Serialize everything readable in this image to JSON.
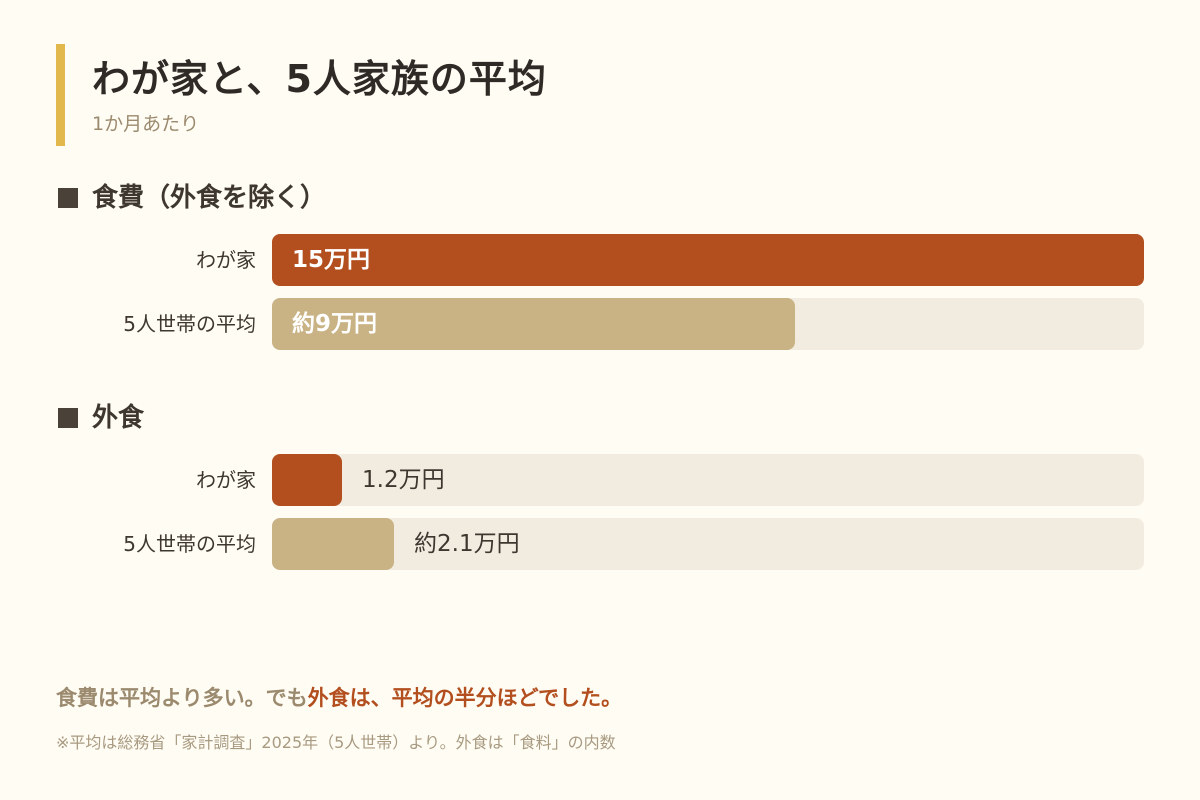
{
  "header": {
    "title": "わが家と、5人家族の平均",
    "subtitle": "1か月あたり"
  },
  "colors": {
    "ours": "#b34f1e",
    "average": "#c9b385",
    "track": "#f2ebe0",
    "accent_bar": "#e2b84c"
  },
  "chart_data": [
    {
      "type": "bar",
      "orientation": "horizontal",
      "title": "食費（外食を除く）",
      "categories": [
        "わが家",
        "5人世帯の平均"
      ],
      "values": [
        15,
        9
      ],
      "unit": "万円",
      "value_labels": [
        "15万円",
        "約9万円"
      ],
      "xlim": [
        0,
        15
      ]
    },
    {
      "type": "bar",
      "orientation": "horizontal",
      "title": "外食",
      "categories": [
        "わが家",
        "5人世帯の平均"
      ],
      "values": [
        1.2,
        2.1
      ],
      "unit": "万円",
      "value_labels": [
        "1.2万円",
        "約2.1万円"
      ],
      "xlim": [
        0,
        15
      ]
    }
  ],
  "conclusion": {
    "plain": "食費は平均より多い。でも",
    "highlight": "外食は、平均の半分ほどでした。"
  },
  "footnote": "※平均は総務省「家計調査」2025年（5人世帯）より。外食は「食料」の内数"
}
